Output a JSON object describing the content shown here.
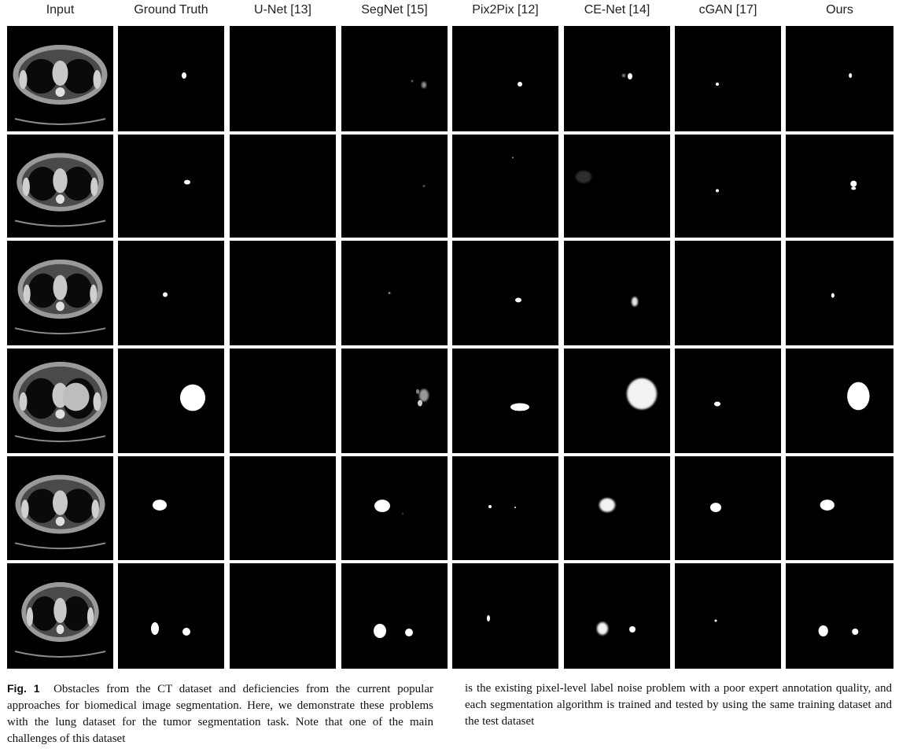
{
  "figure": {
    "columns": [
      "Input",
      "Ground Truth",
      "U-Net [13]",
      "SegNet [15]",
      "Pix2Pix [12]",
      "CE-Net [14]",
      "cGAN [17]",
      "Ours"
    ],
    "rows": 6,
    "panel_background": "#000000",
    "mask_color": "#ffffff"
  },
  "caption": {
    "label": "Fig. 1",
    "left_text": "Obstacles from the CT dataset and deficiencies from the current popular approaches for biomedical image segmentation. Here, we demonstrate these problems with the lung dataset for the tumor segmentation task. Note that one of the main challenges of this dataset",
    "right_text": "is the existing pixel-level label noise problem with a poor expert annotation quality, and each segmentation algorithm is trained and tested by using the same training dataset and the test dataset"
  }
}
